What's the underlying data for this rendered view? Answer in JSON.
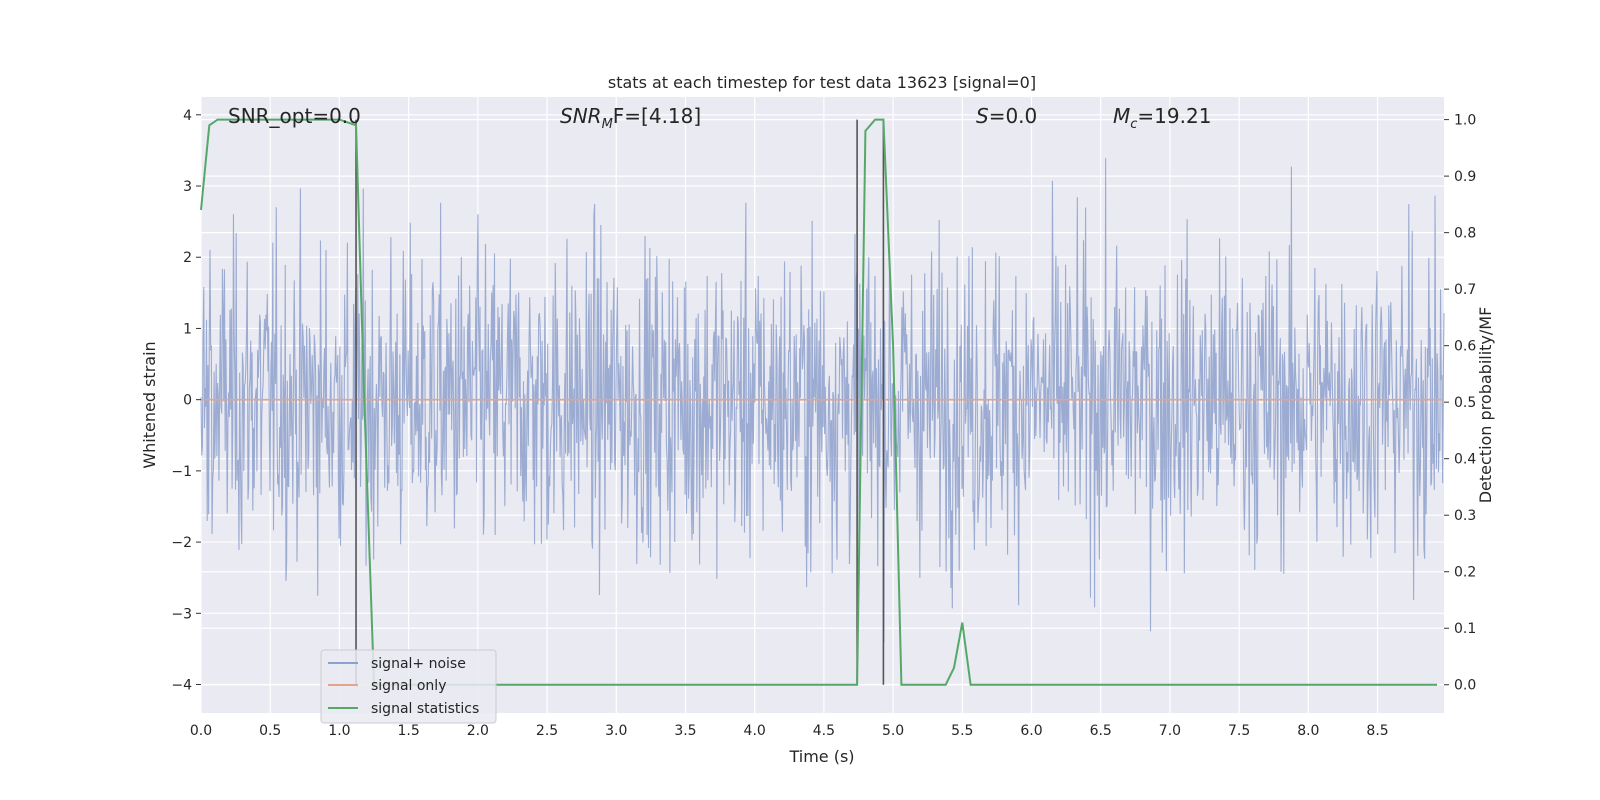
{
  "chart_data": {
    "type": "line",
    "title": "stats at each timestep for test data 13623 [signal=0]",
    "xlabel": "Time (s)",
    "ylabel_left": "Whitened strain",
    "ylabel_right": "Detection probability/MF",
    "xlim": [
      0.0,
      8.98
    ],
    "ylim_left": [
      -4.4,
      4.25
    ],
    "ylim_right": [
      -0.05,
      1.04
    ],
    "x_ticks": [
      "0.0",
      "0.5",
      "1.0",
      "1.5",
      "2.0",
      "2.5",
      "3.0",
      "3.5",
      "4.0",
      "4.5",
      "5.0",
      "5.5",
      "6.0",
      "6.5",
      "7.0",
      "7.5",
      "8.0",
      "8.5"
    ],
    "y_left_ticks": [
      "4",
      "3",
      "2",
      "1",
      "0",
      "−1",
      "−2",
      "−3",
      "−4"
    ],
    "y_right_ticks": [
      "1.0",
      "0.9",
      "0.8",
      "0.7",
      "0.6",
      "0.5",
      "0.4",
      "0.3",
      "0.2",
      "0.1",
      "0.0"
    ],
    "grid": true,
    "legend_position": "lower-left",
    "annotations": {
      "snr_opt": "SNR_opt=0.0",
      "snr_mf_base": "SNR",
      "snr_mf_sub": "M",
      "snr_mf_rest": "F=[4.18]",
      "s_base": "S",
      "s_rest": "=0.0",
      "mc_base": "M",
      "mc_sub": "c",
      "mc_rest": "=19.21"
    },
    "vertical_markers_x": [
      1.12,
      4.74,
      4.93
    ],
    "series": [
      {
        "name": "signal+ noise",
        "axis": "left",
        "color": "#8da0cb",
        "description_value_range": [
          -4.0,
          4.0
        ]
      },
      {
        "name": "signal only",
        "axis": "left",
        "color": "#e5a58a",
        "values_constant": 0.0
      },
      {
        "name": "signal statistics",
        "axis": "right",
        "color": "#55a868",
        "x": [
          0.0,
          0.06,
          0.12,
          0.5,
          1.0,
          1.12,
          1.18,
          1.25,
          1.4,
          2.0,
          3.0,
          4.0,
          4.5,
          4.74,
          4.8,
          4.87,
          4.93,
          5.0,
          5.06,
          5.2,
          5.38,
          5.44,
          5.5,
          5.56,
          5.62,
          6.0,
          7.0,
          8.0,
          8.93
        ],
        "values": [
          0.84,
          0.99,
          1.0,
          1.0,
          1.0,
          0.99,
          0.5,
          0.0,
          0.0,
          0.0,
          0.0,
          0.0,
          0.0,
          0.0,
          0.98,
          1.0,
          1.0,
          0.6,
          0.0,
          0.0,
          0.0,
          0.03,
          0.11,
          0.0,
          0.0,
          0.0,
          0.0,
          0.0,
          0.0
        ]
      }
    ]
  }
}
